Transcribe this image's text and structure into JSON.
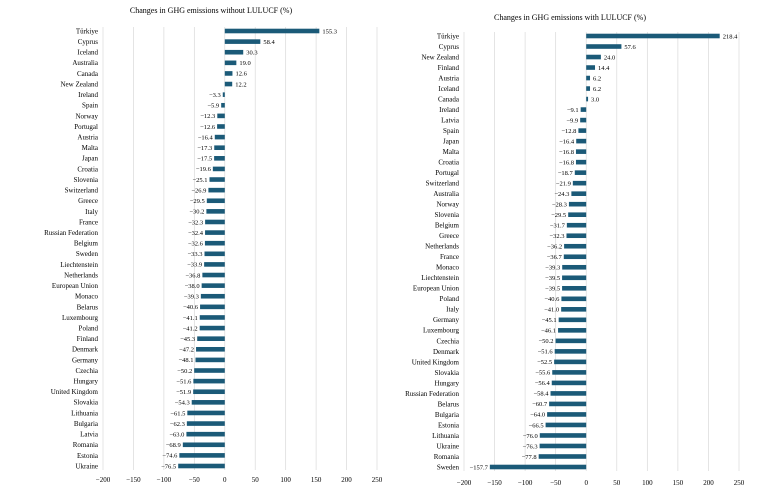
{
  "chart_data": [
    {
      "type": "bar",
      "orientation": "horizontal",
      "title": "Changes in GHG emissions without LULUCF (%)",
      "xlim": [
        -200,
        250
      ],
      "xticks": [
        "−200",
        "−150",
        "−100",
        "−50",
        "0",
        "50",
        "100",
        "150",
        "200",
        "250"
      ],
      "grid": "vertical",
      "bar_color": "#1b5a78",
      "categories": [
        "Türkiye",
        "Cyprus",
        "Iceland",
        "Australia",
        "Canada",
        "New Zealand",
        "Ireland",
        "Spain",
        "Norway",
        "Portugal",
        "Austria",
        "Malta",
        "Japan",
        "Croatia",
        "Slovenia",
        "Switzerland",
        "Greece",
        "Italy",
        "France",
        "Russian Federation",
        "Belgium",
        "Sweden",
        "Liechtenstein",
        "Netherlands",
        "European Union",
        "Monaco",
        "Belarus",
        "Luxembourg",
        "Poland",
        "Finland",
        "Denmark",
        "Germany",
        "Czechia",
        "Hungary",
        "United Kingdom",
        "Slovakia",
        "Lithuania",
        "Bulgaria",
        "Latvia",
        "Romania",
        "Estonia",
        "Ukraine"
      ],
      "values": [
        155.3,
        58.4,
        30.3,
        19.0,
        12.6,
        12.2,
        -3.3,
        -5.9,
        -12.3,
        -12.6,
        -16.4,
        -17.3,
        -17.5,
        -19.6,
        -25.1,
        -26.9,
        -29.5,
        -30.2,
        -32.3,
        -32.4,
        -32.6,
        -33.3,
        -33.9,
        -36.8,
        -38.0,
        -39.3,
        -40.6,
        -41.1,
        -41.2,
        -45.3,
        -47.2,
        -48.1,
        -50.2,
        -51.6,
        -51.9,
        -54.3,
        -61.5,
        -62.3,
        -63.0,
        -68.9,
        -74.6,
        -76.5
      ],
      "labels": [
        "155.3",
        "58.4",
        "30.3",
        "19.0",
        "12.6",
        "12.2",
        "−3.3",
        "−5.9",
        "−12.3",
        "−12.6",
        "−16.4",
        "−17.3",
        "−17.5",
        "−19.6",
        "−25.1",
        "−26.9",
        "−29.5",
        "−30.2",
        "−32.3",
        "−32.4",
        "−32.6",
        "−33.3",
        "−33.9",
        "−36.8",
        "−38.0",
        "−39.3",
        "−40.6",
        "−41.1",
        "−41.2",
        "−45.3",
        "−47.2",
        "−48.1",
        "−50.2",
        "−51.6",
        "−51.9",
        "−54.3",
        "−61.5",
        "−62.3",
        "−63.0",
        "−68.9",
        "−74.6",
        "−76.5"
      ]
    },
    {
      "type": "bar",
      "orientation": "horizontal",
      "title": "Changes in GHG emissions with LULUCF (%)",
      "xlim": [
        -200,
        250
      ],
      "xticks": [
        "−200",
        "−150",
        "−100",
        "−50",
        "0",
        "50",
        "100",
        "150",
        "200",
        "250"
      ],
      "grid": "vertical",
      "bar_color": "#1b5a78",
      "categories": [
        "Türkiye",
        "Cyprus",
        "New Zealand",
        "Finland",
        "Austria",
        "Iceland",
        "Canada",
        "Ireland",
        "Latvia",
        "Spain",
        "Japan",
        "Malta",
        "Croatia",
        "Portugal",
        "Switzerland",
        "Australia",
        "Norway",
        "Slovenia",
        "Belgium",
        "Greece",
        "Netherlands",
        "France",
        "Monaco",
        "Liechtenstein",
        "European Union",
        "Poland",
        "Italy",
        "Germany",
        "Luxembourg",
        "Czechia",
        "Denmark",
        "United Kingdom",
        "Slovakia",
        "Hungary",
        "Russian Federation",
        "Belarus",
        "Bulgaria",
        "Estonia",
        "Lithuania",
        "Ukraine",
        "Romania",
        "Sweden"
      ],
      "values": [
        218.4,
        57.6,
        24.0,
        14.4,
        6.2,
        6.2,
        3.0,
        -9.1,
        -9.9,
        -12.8,
        -16.4,
        -16.8,
        -16.8,
        -18.7,
        -21.9,
        -24.3,
        -28.3,
        -29.5,
        -31.7,
        -32.3,
        -36.2,
        -36.7,
        -39.3,
        -39.5,
        -39.5,
        -40.6,
        -41.0,
        -45.1,
        -46.1,
        -50.2,
        -51.6,
        -52.5,
        -55.6,
        -56.4,
        -58.4,
        -60.7,
        -64.0,
        -66.5,
        -76.0,
        -76.3,
        -77.8,
        -157.7
      ],
      "labels": [
        "218.4",
        "57.6",
        "24.0",
        "14.4",
        "6.2",
        "6.2",
        "3.0",
        "−9.1",
        "−9.9",
        "−12.8",
        "−16.4",
        "−16.8",
        "−16.8",
        "−18.7",
        "−21.9",
        "−24.3",
        "−28.3",
        "−29.5",
        "−31.7",
        "−32.3",
        "−36.2",
        "−36.7",
        "−39.3",
        "−39.5",
        "−39.5",
        "−40.6",
        "−41.0",
        "−45.1",
        "−46.1",
        "−50.2",
        "−51.6",
        "−52.5",
        "−55.6",
        "−56.4",
        "−58.4",
        "−60.7",
        "−64.0",
        "−66.5",
        "−76.0",
        "−76.3",
        "−77.8",
        "−157.7"
      ]
    }
  ]
}
